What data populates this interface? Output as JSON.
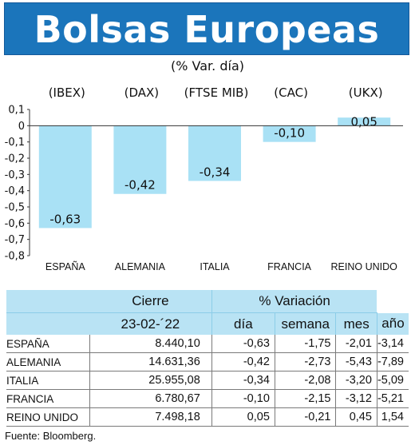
{
  "header": {
    "title": "Bolsas Europeas",
    "subtitle": "(% Var. día)"
  },
  "chart_data": {
    "type": "bar",
    "categories": [
      "ESPAÑA",
      "ALEMANIA",
      "ITALIA",
      "FRANCIA",
      "REINO UNIDO"
    ],
    "index_labels": [
      "(IBEX)",
      "(DAX)",
      "(FTSE MIB)",
      "(CAC)",
      "(UKX)"
    ],
    "values": [
      -0.63,
      -0.42,
      -0.34,
      -0.1,
      0.05
    ],
    "value_labels": [
      "-0,63",
      "-0,42",
      "-0,34",
      "-0,10",
      "0,05"
    ],
    "yticks": [
      "0,1",
      "0",
      "-0,1",
      "-0,2",
      "-0,3",
      "-0,4",
      "-0,5",
      "-0,6",
      "-0,7",
      "-0,8"
    ],
    "ylim": [
      -0.8,
      0.1
    ],
    "grid": false,
    "bar_color": "#a9e1f5"
  },
  "table": {
    "cierre_header": "Cierre",
    "variacion_header": "% Variación",
    "date": "23-02-´22",
    "col_dia": "día",
    "col_semana": "semana",
    "col_mes": "mes",
    "col_ano": "año",
    "rows": [
      {
        "country": "ESPAÑA",
        "cierre": "8.440,10",
        "dia": "-0,63",
        "semana": "-1,75",
        "mes": "-2,01",
        "ano": "-3,14"
      },
      {
        "country": "ALEMANIA",
        "cierre": "14.631,36",
        "dia": "-0,42",
        "semana": "-2,73",
        "mes": "-5,43",
        "ano": "-7,89"
      },
      {
        "country": "ITALIA",
        "cierre": "25.955,08",
        "dia": "-0,34",
        "semana": "-2,08",
        "mes": "-3,20",
        "ano": "-5,09"
      },
      {
        "country": "FRANCIA",
        "cierre": "6.780,67",
        "dia": "-0,10",
        "semana": "-2,15",
        "mes": "-3,12",
        "ano": "-5,21"
      },
      {
        "country": "REINO UNIDO",
        "cierre": "7.498,18",
        "dia": "0,05",
        "semana": "-0,21",
        "mes": "0,45",
        "ano": "1,54"
      }
    ]
  },
  "source": "Fuente: Bloomberg.",
  "colors": {
    "title_bg": "#1b75bb",
    "table_header_bg": "#b9e3f4"
  }
}
